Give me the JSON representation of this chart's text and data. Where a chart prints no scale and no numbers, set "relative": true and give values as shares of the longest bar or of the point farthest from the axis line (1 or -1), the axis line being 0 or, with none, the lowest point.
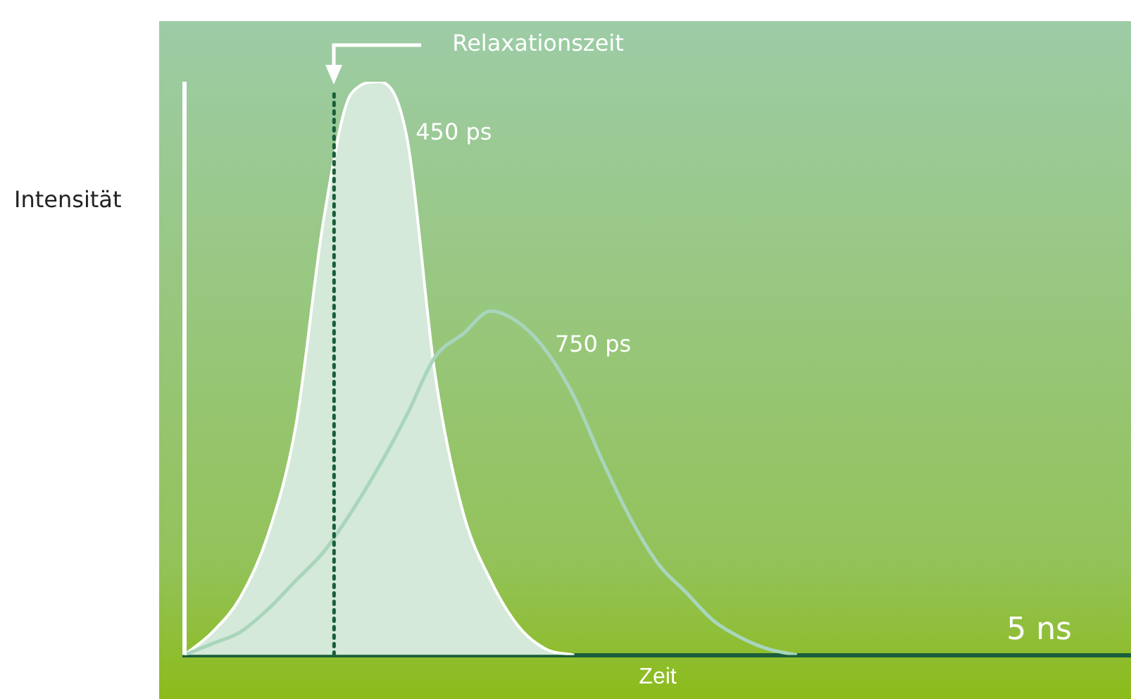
{
  "chart_data": {
    "type": "area",
    "relative": true,
    "ylabel": "Intensität",
    "xlabel": "Zeit",
    "categories": [
      null,
      null,
      null,
      null,
      null,
      null,
      null,
      null,
      null,
      null,
      null,
      null,
      null,
      null,
      null,
      null,
      null,
      null,
      null,
      null,
      null,
      null,
      null,
      null,
      null,
      null,
      null,
      null,
      null,
      null,
      null,
      null,
      null,
      null,
      null
    ],
    "series": [
      {
        "name": "450 ps",
        "color": "#d4e9d9",
        "values": [
          0,
          0.04,
          0.1,
          0.21,
          0.4,
          0.76,
          0.98,
          1,
          0.9,
          0.49,
          0.25,
          0.13,
          0.05,
          0.01,
          0,
          null,
          null,
          null,
          null,
          null,
          null,
          null,
          null,
          null,
          null,
          null,
          null,
          null,
          null,
          null,
          null,
          null,
          null,
          null,
          null
        ]
      },
      {
        "name": "750 ps",
        "type": "line",
        "color": "#a8d5bc",
        "values": [
          0,
          0.02,
          0.04,
          0.08,
          0.13,
          0.18,
          0.25,
          0.33,
          0.42,
          0.52,
          0.56,
          0.6,
          0.58,
          0.53,
          0.45,
          0.34,
          0.24,
          0.16,
          0.11,
          0.06,
          0.03,
          0.01,
          0,
          null,
          null,
          null,
          null,
          null,
          null,
          null,
          null,
          null,
          null,
          null,
          null
        ]
      }
    ],
    "annotations": [
      "Relaxationszeit",
      "5 ns"
    ],
    "grid": false,
    "legend": false
  }
}
